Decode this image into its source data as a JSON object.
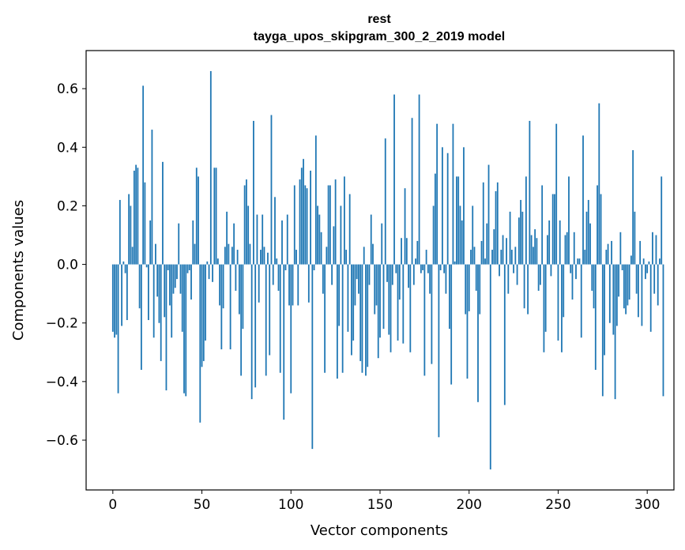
{
  "chart_data": {
    "type": "bar",
    "title": "rest",
    "subtitle": "tayga_upos_skipgram_300_2_2019 model",
    "xlabel": "Vector components",
    "ylabel": "Components values",
    "xlim": [
      -15,
      315
    ],
    "ylim": [
      -0.77,
      0.73
    ],
    "xticks": [
      0,
      50,
      100,
      150,
      200,
      250,
      300
    ],
    "yticks": [
      -0.6,
      -0.4,
      -0.2,
      0.0,
      0.2,
      0.4,
      0.6
    ],
    "xtick_labels": [
      "0",
      "50",
      "100",
      "150",
      "200",
      "250",
      "300"
    ],
    "ytick_labels": [
      "−0.6",
      "−0.4",
      "−0.2",
      "0.0",
      "0.2",
      "0.4",
      "0.6"
    ],
    "color": "#1f77b4",
    "grid": false,
    "x_start": 0,
    "values": [
      -0.23,
      -0.25,
      -0.24,
      -0.44,
      0.22,
      -0.21,
      0.01,
      -0.03,
      -0.19,
      0.24,
      0.2,
      0.06,
      0.32,
      0.34,
      0.33,
      -0.15,
      -0.36,
      0.61,
      0.28,
      -0.01,
      -0.19,
      0.15,
      0.46,
      -0.25,
      0.07,
      -0.11,
      -0.2,
      -0.33,
      0.35,
      -0.18,
      -0.43,
      -0.02,
      -0.14,
      -0.25,
      -0.1,
      -0.08,
      -0.05,
      0.14,
      -0.1,
      -0.23,
      -0.44,
      -0.45,
      -0.03,
      -0.02,
      -0.12,
      0.15,
      0.07,
      0.33,
      0.3,
      -0.54,
      -0.35,
      -0.33,
      -0.26,
      0.01,
      -0.05,
      0.66,
      -0.06,
      0.33,
      0.33,
      0.02,
      -0.14,
      -0.29,
      -0.15,
      0.06,
      0.18,
      0.07,
      -0.29,
      0.06,
      0.14,
      -0.09,
      0.05,
      -0.17,
      -0.38,
      -0.22,
      0.27,
      0.29,
      0.2,
      0.07,
      -0.46,
      0.49,
      -0.42,
      0.17,
      -0.13,
      0.05,
      0.17,
      0.06,
      -0.38,
      0.04,
      -0.31,
      0.51,
      -0.07,
      0.23,
      0.02,
      -0.09,
      -0.37,
      0.15,
      -0.53,
      -0.02,
      0.17,
      -0.14,
      -0.44,
      -0.14,
      0.27,
      0.05,
      -0.14,
      0.29,
      0.33,
      0.36,
      0.27,
      0.26,
      -0.13,
      0.32,
      -0.63,
      -0.02,
      0.44,
      0.2,
      0.17,
      0.11,
      -0.1,
      -0.37,
      0.06,
      0.27,
      0.27,
      -0.07,
      0.13,
      0.29,
      -0.39,
      -0.21,
      0.2,
      -0.37,
      0.3,
      0.05,
      -0.23,
      0.24,
      -0.31,
      -0.26,
      -0.14,
      -0.05,
      -0.1,
      -0.33,
      -0.37,
      0.06,
      -0.38,
      -0.35,
      -0.07,
      0.17,
      0.07,
      -0.17,
      -0.14,
      -0.32,
      -0.25,
      0.14,
      -0.22,
      0.43,
      -0.06,
      -0.24,
      -0.3,
      -0.07,
      0.58,
      -0.03,
      -0.26,
      -0.12,
      0.09,
      -0.27,
      0.26,
      0.09,
      -0.08,
      -0.3,
      0.5,
      -0.07,
      0.02,
      0.08,
      0.58,
      -0.03,
      -0.02,
      -0.38,
      0.05,
      -0.03,
      -0.1,
      -0.34,
      0.2,
      0.31,
      0.48,
      -0.59,
      -0.02,
      0.4,
      -0.03,
      -0.1,
      0.38,
      -0.22,
      -0.41,
      0.48,
      0.01,
      0.3,
      0.3,
      0.2,
      0.15,
      0.4,
      -0.17,
      -0.39,
      -0.16,
      0.05,
      0.2,
      0.06,
      -0.09,
      -0.47,
      -0.17,
      0.08,
      0.28,
      0.02,
      0.14,
      0.34,
      -0.7,
      0.05,
      0.12,
      0.25,
      0.28,
      -0.04,
      0.05,
      0.1,
      -0.48,
      0.09,
      -0.1,
      0.18,
      0.05,
      -0.03,
      0.06,
      -0.07,
      0.16,
      0.22,
      0.18,
      -0.15,
      0.3,
      -0.17,
      0.49,
      0.1,
      0.06,
      0.12,
      0.09,
      -0.09,
      -0.07,
      0.27,
      -0.3,
      -0.23,
      0.1,
      0.15,
      -0.04,
      0.24,
      0.24,
      0.48,
      -0.26,
      0.15,
      -0.3,
      -0.18,
      0.1,
      0.11,
      0.3,
      -0.03,
      -0.12,
      0.11,
      -0.05,
      0.02,
      0.02,
      -0.25,
      0.44,
      0.05,
      0.18,
      0.22,
      0.14,
      -0.09,
      -0.15,
      -0.36,
      0.27,
      0.55,
      0.24,
      -0.45,
      -0.31,
      0.05,
      0.07,
      -0.2,
      0.08,
      -0.24,
      -0.46,
      -0.21,
      -0.11,
      0.11,
      -0.02,
      -0.15,
      -0.17,
      -0.14,
      -0.12,
      0.03,
      0.39,
      0.18,
      -0.1,
      -0.18,
      0.08,
      -0.21,
      0.02,
      -0.05,
      -0.03,
      0.01,
      -0.23,
      0.11,
      -0.1,
      0.1,
      -0.14,
      0.02,
      0.3,
      -0.45
    ]
  }
}
